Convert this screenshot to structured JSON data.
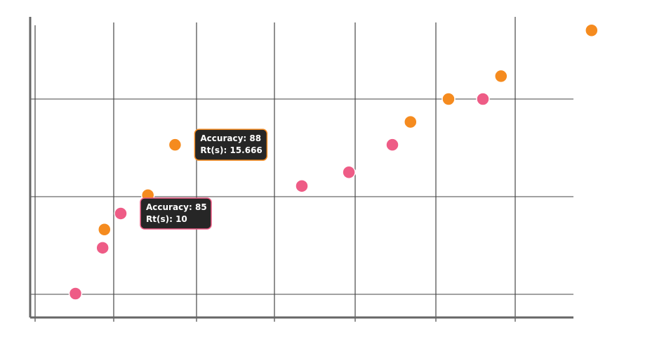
{
  "chart_data": {
    "type": "scatter",
    "title": "",
    "xlabel": "",
    "ylabel": "",
    "xlim": [
      0,
      30
    ],
    "ylim": [
      81,
      95
    ],
    "grid": true,
    "series": [
      {
        "color": "#ee5c86",
        "points": [
          {
            "x": 2.5,
            "y": 81.5
          },
          {
            "x": 4,
            "y": 83.5
          },
          {
            "x": 5,
            "y": 85
          },
          {
            "x": 15,
            "y": 86.2
          },
          {
            "x": 17.6,
            "y": 86.8
          },
          {
            "x": 20,
            "y": 88
          },
          {
            "x": 25,
            "y": 90
          }
        ]
      },
      {
        "color": "#f58b1f",
        "points": [
          {
            "x": 4.1,
            "y": 84.3
          },
          {
            "x": 6.5,
            "y": 85.8
          },
          {
            "x": 8,
            "y": 88
          },
          {
            "x": 21,
            "y": 89
          },
          {
            "x": 23.1,
            "y": 90
          },
          {
            "x": 26,
            "y": 91
          },
          {
            "x": 31,
            "y": 93
          }
        ]
      }
    ],
    "tooltips": [
      {
        "series": 1,
        "point": 2,
        "line1": "Accuracy: 88",
        "line2": "Rt(s): 15.666"
      },
      {
        "series": 0,
        "point": 2,
        "line1": "Accuracy: 85",
        "line2": "Rt(s): 10"
      }
    ]
  }
}
